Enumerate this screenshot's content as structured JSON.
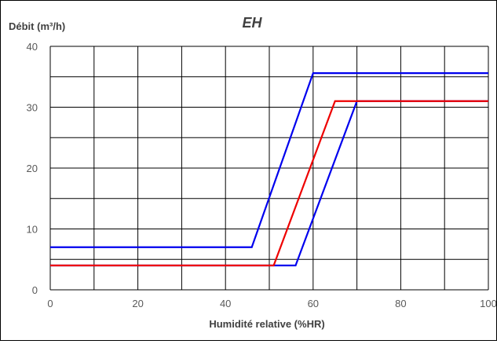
{
  "chart_data": {
    "type": "line",
    "title": "EH",
    "ylabel": "Débit (m³/h)",
    "xlabel": "Humidité relative (%HR)",
    "xlim": [
      0,
      100
    ],
    "ylim": [
      0,
      40
    ],
    "x_ticks": [
      0,
      20,
      40,
      60,
      80,
      100
    ],
    "y_ticks": [
      0,
      10,
      20,
      30,
      40
    ],
    "x_gridlines": [
      0,
      10,
      20,
      30,
      40,
      50,
      60,
      70,
      80,
      90,
      100
    ],
    "y_gridlines": [
      0,
      5,
      10,
      15,
      20,
      25,
      30,
      35,
      40
    ],
    "grid": true,
    "legend": "none",
    "series": [
      {
        "color": "#0000ee",
        "x": [
          0,
          46,
          60,
          100
        ],
        "y": [
          7,
          7,
          35.6,
          35.6
        ]
      },
      {
        "color": "#0000ee",
        "x": [
          0,
          56,
          70,
          100
        ],
        "y": [
          4,
          4,
          31,
          31
        ]
      },
      {
        "color": "#ee0000",
        "x": [
          0,
          51,
          65,
          100
        ],
        "y": [
          4,
          4,
          31,
          31
        ]
      }
    ]
  }
}
